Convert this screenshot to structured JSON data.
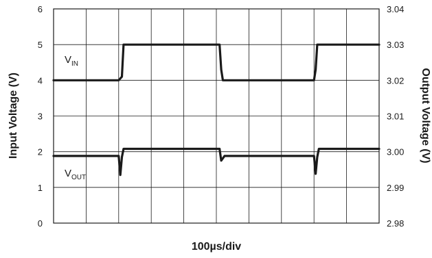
{
  "chart_data": {
    "type": "line",
    "xlabel": "100µs/div",
    "x_divisions": 10,
    "x_range": [
      0,
      10
    ],
    "y_left": {
      "label": "Input Voltage (V)",
      "range": [
        0,
        6
      ],
      "ticks": [
        "0",
        "1",
        "2",
        "3",
        "4",
        "5",
        "6"
      ]
    },
    "y_right": {
      "label": "Output Voltage (V)",
      "range": [
        2.98,
        3.04
      ],
      "ticks": [
        "2.98",
        "2.99",
        "3.00",
        "3.01",
        "3.02",
        "3.03",
        "3.04"
      ]
    },
    "grid": true,
    "series": [
      {
        "name": "V_IN",
        "label_main": "V",
        "label_sub": "IN",
        "axis": "left",
        "color": "#1a1a1a",
        "points": [
          [
            0,
            4.0
          ],
          [
            2.0,
            4.0
          ],
          [
            2.1,
            4.1
          ],
          [
            2.15,
            5.0
          ],
          [
            5.1,
            5.0
          ],
          [
            5.15,
            4.3
          ],
          [
            5.2,
            4.0
          ],
          [
            8.0,
            4.0
          ],
          [
            8.05,
            4.3
          ],
          [
            8.1,
            5.0
          ],
          [
            10,
            5.0
          ]
        ]
      },
      {
        "name": "V_OUT",
        "label_main": "V",
        "label_sub": "OUT",
        "axis": "right",
        "color": "#1a1a1a",
        "points": [
          [
            0,
            2.9988
          ],
          [
            2.0,
            2.9988
          ],
          [
            2.05,
            2.9935
          ],
          [
            2.1,
            2.9985
          ],
          [
            2.15,
            3.0008
          ],
          [
            5.1,
            3.0008
          ],
          [
            5.15,
            2.9975
          ],
          [
            5.25,
            2.9988
          ],
          [
            8.0,
            2.9988
          ],
          [
            8.05,
            2.9938
          ],
          [
            8.1,
            2.9985
          ],
          [
            8.15,
            3.0008
          ],
          [
            10,
            3.0008
          ]
        ]
      }
    ]
  }
}
